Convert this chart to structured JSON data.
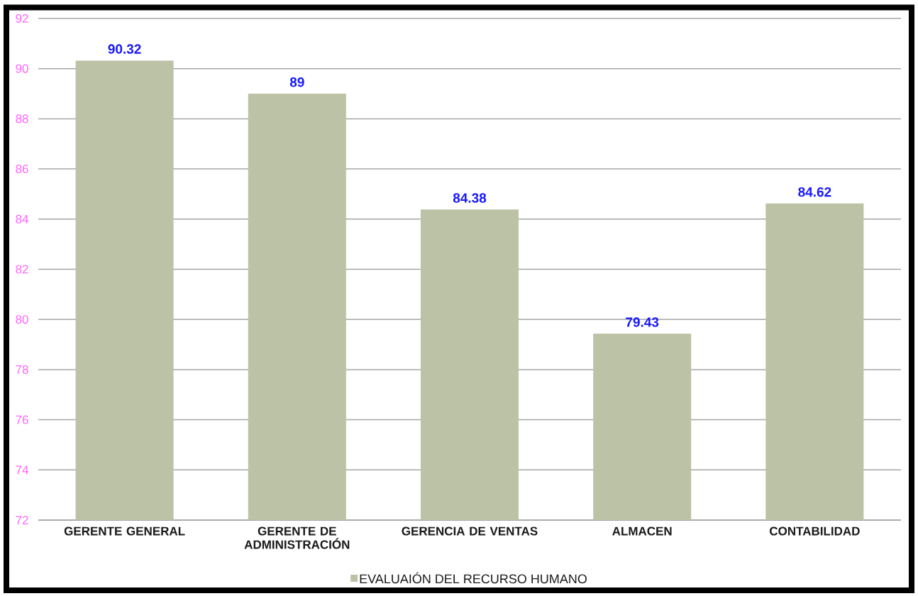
{
  "chart_data": {
    "type": "bar",
    "categories": [
      "GERENTE GENERAL",
      "GERENTE DE ADMINISTRACIÓN",
      "GERENCIA DE VENTAS",
      "ALMACEN",
      "CONTABILIDAD"
    ],
    "series": [
      {
        "name": "EVALUAIÓN DEL RECURSO HUMANO",
        "color": "#bbc2a5",
        "values": [
          90.32,
          89,
          84.38,
          79.43,
          84.62
        ]
      }
    ],
    "ylim": [
      72,
      92
    ],
    "yticks": [
      72,
      74,
      76,
      78,
      80,
      82,
      84,
      86,
      88,
      90,
      92
    ],
    "grid": "y",
    "data_labels": true,
    "legend": "bottom"
  }
}
